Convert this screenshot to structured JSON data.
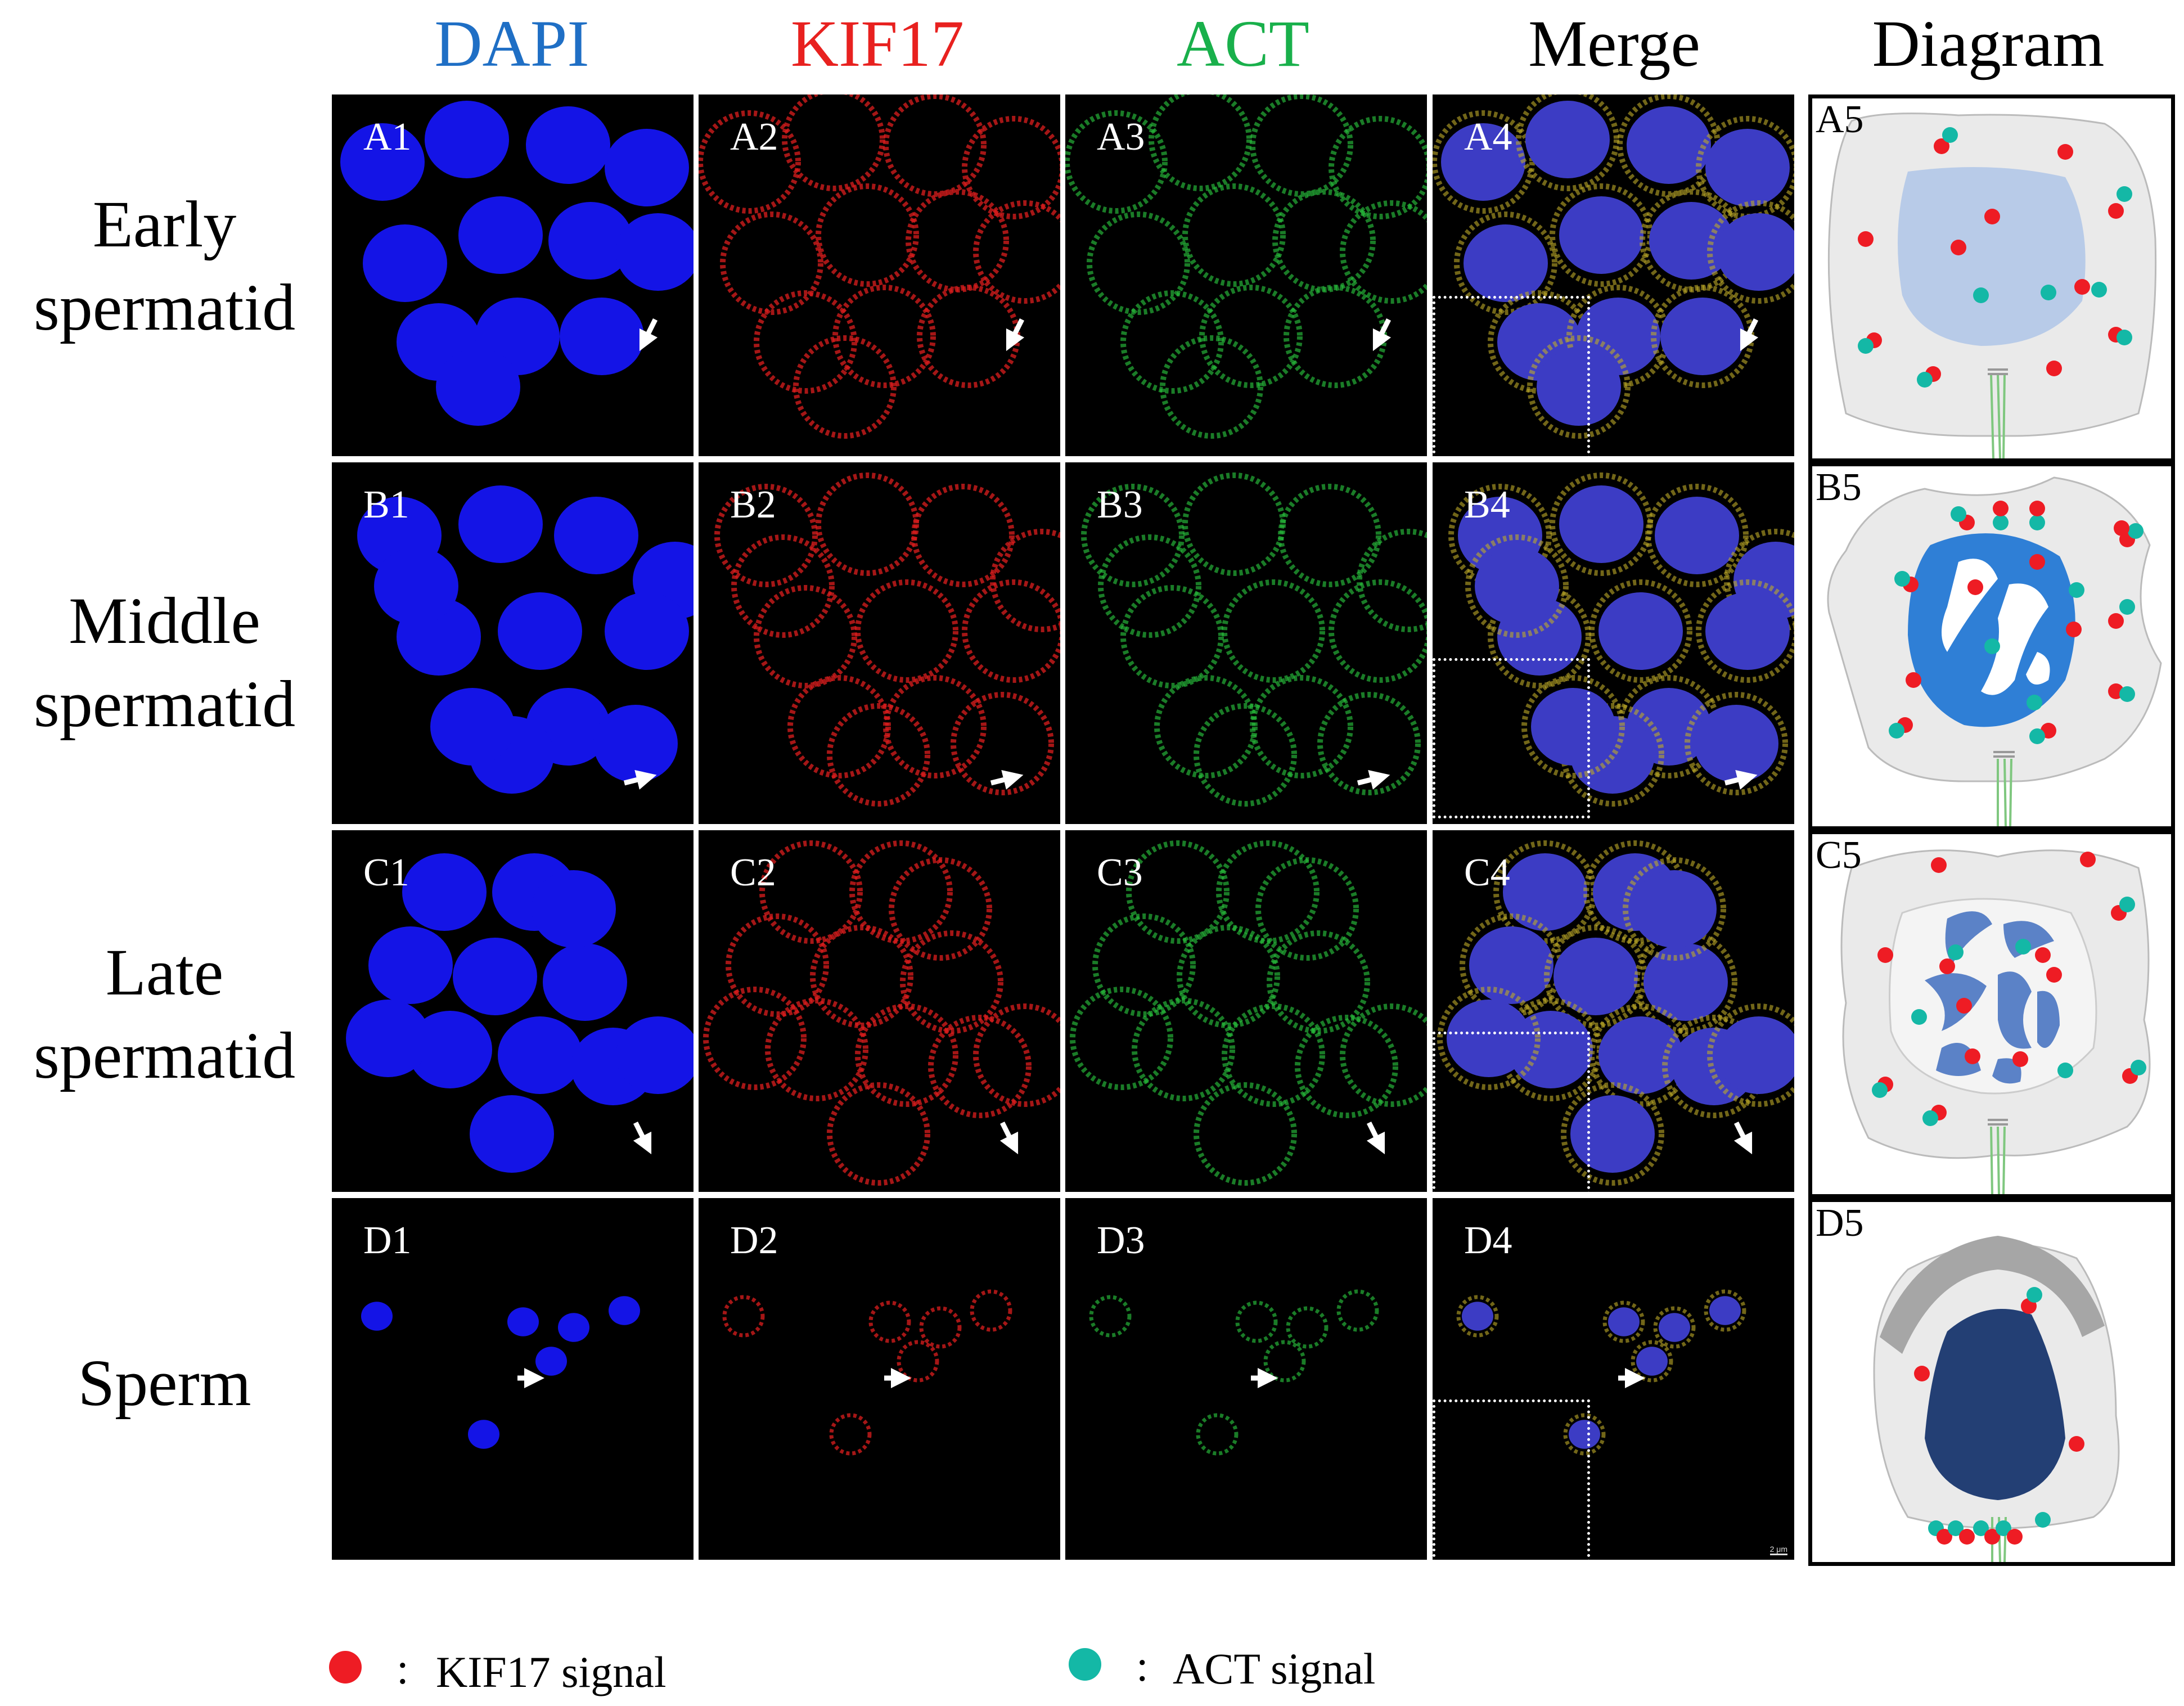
{
  "columns": {
    "dapi": {
      "label": "DAPI",
      "color": "#1f6fc5"
    },
    "kif17": {
      "label": "KIF17",
      "color": "#e8211f"
    },
    "act": {
      "label": "ACT",
      "color": "#19b04b"
    },
    "merge": {
      "label": "Merge",
      "color": "#000000"
    },
    "diagram": {
      "label": "Diagram",
      "color": "#000000"
    }
  },
  "rows": [
    {
      "label_line1": "Early",
      "label_line2": "spermatid",
      "panels": [
        "A1",
        "A2",
        "A3",
        "A4",
        "A5"
      ]
    },
    {
      "label_line1": "Middle",
      "label_line2": "spermatid",
      "panels": [
        "B1",
        "B2",
        "B3",
        "B4",
        "B5"
      ]
    },
    {
      "label_line1": "Late",
      "label_line2": "spermatid",
      "panels": [
        "C1",
        "C2",
        "C3",
        "C4",
        "C5"
      ]
    },
    {
      "label_line1": "Sperm",
      "label_line2": "",
      "panels": [
        "D1",
        "D2",
        "D3",
        "D4",
        "D5"
      ]
    }
  ],
  "legend": {
    "kif17": {
      "colon": ":",
      "text": "KIF17 signal",
      "color": "#ee1c24"
    },
    "act": {
      "colon": ":",
      "text": "ACT signal",
      "color": "#14b8a6"
    }
  },
  "scale_bar": "2 μm"
}
